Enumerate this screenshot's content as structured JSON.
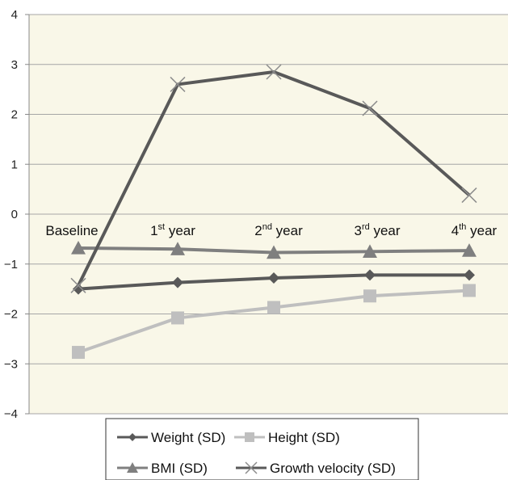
{
  "chart_data": {
    "type": "line",
    "categories": [
      {
        "base": "Baseline",
        "sup": "",
        "tail": ""
      },
      {
        "base": "1",
        "sup": "st",
        "tail": " year"
      },
      {
        "base": "2",
        "sup": "nd",
        "tail": " year"
      },
      {
        "base": "3",
        "sup": "rd",
        "tail": " year"
      },
      {
        "base": "4",
        "sup": "th",
        "tail": " year"
      }
    ],
    "ylim": [
      -4,
      4
    ],
    "yticks": [
      "4",
      "3",
      "2",
      "1",
      "0",
      "−1",
      "−2",
      "−3",
      "−4"
    ],
    "grid": true,
    "legend_position": "bottom",
    "series": [
      {
        "name": "Weight (SD)",
        "marker": "diamond",
        "color": "#595959",
        "values": [
          -1.5,
          -1.37,
          -1.28,
          -1.22,
          -1.22
        ]
      },
      {
        "name": "Height (SD)",
        "marker": "square",
        "color": "#bfbfbf",
        "values": [
          -2.77,
          -2.08,
          -1.87,
          -1.64,
          -1.53
        ]
      },
      {
        "name": "BMI (SD)",
        "marker": "triangle",
        "color": "#7f7f7f",
        "values": [
          -0.68,
          -0.7,
          -0.77,
          -0.75,
          -0.73
        ]
      },
      {
        "name": "Growth velocity (SD)",
        "marker": "x",
        "color": "#595959",
        "values": [
          -1.43,
          2.6,
          2.85,
          2.12,
          0.38
        ]
      }
    ]
  }
}
